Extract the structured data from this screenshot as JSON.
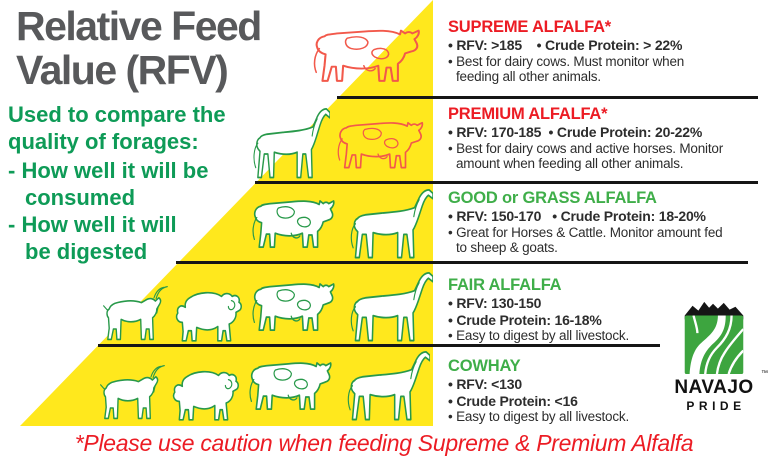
{
  "colors": {
    "pyramid_yellow": "#FFE81D",
    "heading_red": "#EC1C24",
    "heading_green": "#3FAE49",
    "left_text_green": "#0E9B57",
    "title_gray": "#58595B",
    "body_text": "#2D2D2D",
    "footer_red": "#EC1C24",
    "logo_green": "#3DA53F",
    "animal_red_outline": "#F2594B",
    "animal_green_outline": "#28994A"
  },
  "left_panel": {
    "title_line1": "Relative Feed",
    "title_line2": "Value (RFV)",
    "subtitle_line1": "Used to compare the",
    "subtitle_line2": "quality of forages:",
    "bullet1_line1": "- How well it will be",
    "bullet1_line2": "consumed",
    "bullet2_line1": "- How well it will",
    "bullet2_line2": "be digested"
  },
  "tiers": [
    {
      "name": "SUPREME ALFALFA*",
      "heading_color": "#EC1C24",
      "stat_lines": [
        "• RFV: >185    • Crude Protein: > 22%"
      ],
      "desc_lines": [
        "• Best for dairy cows. Must monitor when",
        "feeding all other animals."
      ],
      "animals": [
        {
          "kind": "cow",
          "color": "red"
        }
      ]
    },
    {
      "name": "PREMIUM ALFALFA*",
      "heading_color": "#EC1C24",
      "stat_lines": [
        "• RFV: 170-185  • Crude Protein: 20-22%"
      ],
      "desc_lines": [
        "• Best for dairy cows and active horses. Monitor",
        "amount when feeding all other animals."
      ],
      "animals": [
        {
          "kind": "horse",
          "color": "green"
        },
        {
          "kind": "cow",
          "color": "red"
        }
      ]
    },
    {
      "name": "GOOD or GRASS ALFALFA",
      "heading_color": "#3FAE49",
      "stat_lines": [
        "• RFV: 150-170   • Crude Protein: 18-20%"
      ],
      "desc_lines": [
        "• Great for Horses & Cattle. Monitor amount fed",
        "to sheep & goats."
      ],
      "animals": [
        {
          "kind": "cow",
          "color": "green"
        },
        {
          "kind": "horse",
          "color": "green"
        }
      ]
    },
    {
      "name": "FAIR ALFALFA",
      "heading_color": "#3FAE49",
      "stat_lines": [
        "• RFV: 130-150",
        "• Crude Protein: 16-18%"
      ],
      "desc_lines": [
        "• Easy to digest by all livestock."
      ],
      "animals": [
        {
          "kind": "goat",
          "color": "green"
        },
        {
          "kind": "sheep",
          "color": "green"
        },
        {
          "kind": "cow",
          "color": "green"
        },
        {
          "kind": "horse",
          "color": "green"
        }
      ]
    },
    {
      "name": "COWHAY",
      "heading_color": "#3FAE49",
      "stat_lines": [
        "• RFV: <130",
        "• Crude Protein: <16"
      ],
      "desc_lines": [
        "• Easy to digest by all livestock."
      ],
      "animals": [
        {
          "kind": "goat",
          "color": "green"
        },
        {
          "kind": "sheep",
          "color": "green"
        },
        {
          "kind": "cow",
          "color": "green"
        },
        {
          "kind": "horse",
          "color": "green"
        }
      ]
    }
  ],
  "logo": {
    "brand_line1": "NAVAJO",
    "brand_line2": "PRIDE",
    "trademark": "™"
  },
  "footer": {
    "caution_text": "*Please use caution when feeding Supreme & Premium Alfalfa"
  }
}
